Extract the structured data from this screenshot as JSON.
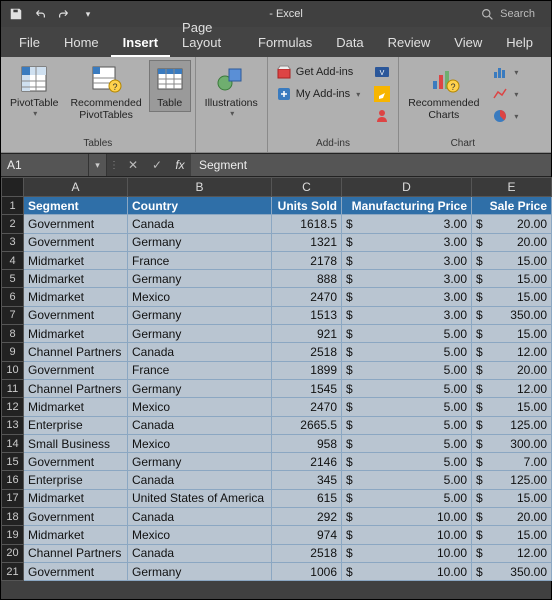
{
  "titlebar": {
    "title": "- Excel",
    "search_placeholder": "Search"
  },
  "tabs": {
    "items": [
      "File",
      "Home",
      "Insert",
      "Page Layout",
      "Formulas",
      "Data",
      "Review",
      "View",
      "Help"
    ],
    "active_index": 2
  },
  "ribbon": {
    "tables": {
      "label": "Tables",
      "pivot": "PivotTable",
      "recommended": "Recommended\nPivotTables",
      "table": "Table"
    },
    "illustrations": {
      "label": "",
      "button": "Illustrations"
    },
    "addins": {
      "label": "Add-ins",
      "get": "Get Add-ins",
      "my": "My Add-ins"
    },
    "charts": {
      "label": "Chart",
      "recommended": "Recommended\nCharts"
    }
  },
  "formula_bar": {
    "name_box": "A1",
    "value": "Segment"
  },
  "sheet": {
    "columns": [
      "A",
      "B",
      "C",
      "D",
      "E"
    ],
    "header": [
      "Segment",
      "Country",
      "Units Sold",
      "Manufacturing Price",
      "Sale Price"
    ],
    "currency": "$",
    "rows": [
      {
        "seg": "Government",
        "country": "Canada",
        "units": "1618.5",
        "mfg": "3.00",
        "sale": "20.00"
      },
      {
        "seg": "Government",
        "country": "Germany",
        "units": "1321",
        "mfg": "3.00",
        "sale": "20.00"
      },
      {
        "seg": "Midmarket",
        "country": "France",
        "units": "2178",
        "mfg": "3.00",
        "sale": "15.00"
      },
      {
        "seg": "Midmarket",
        "country": "Germany",
        "units": "888",
        "mfg": "3.00",
        "sale": "15.00"
      },
      {
        "seg": "Midmarket",
        "country": "Mexico",
        "units": "2470",
        "mfg": "3.00",
        "sale": "15.00"
      },
      {
        "seg": "Government",
        "country": "Germany",
        "units": "1513",
        "mfg": "3.00",
        "sale": "350.00"
      },
      {
        "seg": "Midmarket",
        "country": "Germany",
        "units": "921",
        "mfg": "5.00",
        "sale": "15.00"
      },
      {
        "seg": "Channel Partners",
        "country": "Canada",
        "units": "2518",
        "mfg": "5.00",
        "sale": "12.00"
      },
      {
        "seg": "Government",
        "country": "France",
        "units": "1899",
        "mfg": "5.00",
        "sale": "20.00"
      },
      {
        "seg": "Channel Partners",
        "country": "Germany",
        "units": "1545",
        "mfg": "5.00",
        "sale": "12.00"
      },
      {
        "seg": "Midmarket",
        "country": "Mexico",
        "units": "2470",
        "mfg": "5.00",
        "sale": "15.00"
      },
      {
        "seg": "Enterprise",
        "country": "Canada",
        "units": "2665.5",
        "mfg": "5.00",
        "sale": "125.00"
      },
      {
        "seg": "Small Business",
        "country": "Mexico",
        "units": "958",
        "mfg": "5.00",
        "sale": "300.00"
      },
      {
        "seg": "Government",
        "country": "Germany",
        "units": "2146",
        "mfg": "5.00",
        "sale": "7.00"
      },
      {
        "seg": "Enterprise",
        "country": "Canada",
        "units": "345",
        "mfg": "5.00",
        "sale": "125.00"
      },
      {
        "seg": "Midmarket",
        "country": "United States of America",
        "units": "615",
        "mfg": "5.00",
        "sale": "15.00"
      },
      {
        "seg": "Government",
        "country": "Canada",
        "units": "292",
        "mfg": "10.00",
        "sale": "20.00"
      },
      {
        "seg": "Midmarket",
        "country": "Mexico",
        "units": "974",
        "mfg": "10.00",
        "sale": "15.00"
      },
      {
        "seg": "Channel Partners",
        "country": "Canada",
        "units": "2518",
        "mfg": "10.00",
        "sale": "12.00"
      },
      {
        "seg": "Government",
        "country": "Germany",
        "units": "1006",
        "mfg": "10.00",
        "sale": "350.00"
      }
    ]
  },
  "colors": {
    "header_bg": "#2f6fa8",
    "cell_bg": "#b9c5d1",
    "cell_border": "#8ba7c2",
    "ribbon_bg": "#b0b0b0",
    "app_bg": "#404040"
  }
}
